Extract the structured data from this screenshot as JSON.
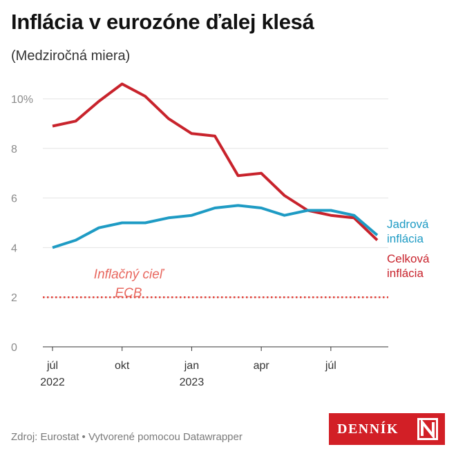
{
  "title": "Inflácia v eurozóne ďalej klesá",
  "subtitle": "(Medziročná miera)",
  "footer": "Zdroj: Eurostat • Vytvorené pomocou Datawrapper",
  "logo": {
    "text": "DENNÍK",
    "mark": "N"
  },
  "chart_data": {
    "type": "line",
    "x": [
      "2022-07",
      "2022-08",
      "2022-09",
      "2022-10",
      "2022-11",
      "2022-12",
      "2023-01",
      "2023-02",
      "2023-03",
      "2023-04",
      "2023-05",
      "2023-06",
      "2023-07",
      "2023-08",
      "2023-09"
    ],
    "x_ticks": [
      {
        "label": "júl",
        "sublabel": "2022",
        "index": 0
      },
      {
        "label": "okt",
        "sublabel": "",
        "index": 3
      },
      {
        "label": "jan",
        "sublabel": "2023",
        "index": 6
      },
      {
        "label": "apr",
        "sublabel": "",
        "index": 9
      },
      {
        "label": "júl",
        "sublabel": "",
        "index": 12
      }
    ],
    "y_ticks": [
      "0",
      "2",
      "4",
      "6",
      "8",
      "10%"
    ],
    "ylim": [
      0,
      10
    ],
    "grid": true,
    "series": [
      {
        "name": "Celková inflácia",
        "color": "#c8232c",
        "values": [
          8.9,
          9.1,
          9.9,
          10.6,
          10.1,
          9.2,
          8.6,
          8.5,
          6.9,
          7.0,
          6.1,
          5.5,
          5.3,
          5.2,
          4.3
        ]
      },
      {
        "name": "Jadrová inflácia",
        "color": "#1e9bc4",
        "values": [
          4.0,
          4.3,
          4.8,
          5.0,
          5.0,
          5.2,
          5.3,
          5.6,
          5.7,
          5.6,
          5.3,
          5.5,
          5.5,
          5.3,
          4.5
        ]
      }
    ],
    "reference_line": {
      "value": 2,
      "label_line1": "Inflačný cieľ",
      "label_line2": "ECB",
      "color": "#e03a32"
    },
    "series_labels": [
      {
        "line1": "Jadrová",
        "line2": "inflácia",
        "color": "#1e9bc4"
      },
      {
        "line1": "Celková",
        "line2": "inflácia",
        "color": "#c8232c"
      }
    ]
  }
}
